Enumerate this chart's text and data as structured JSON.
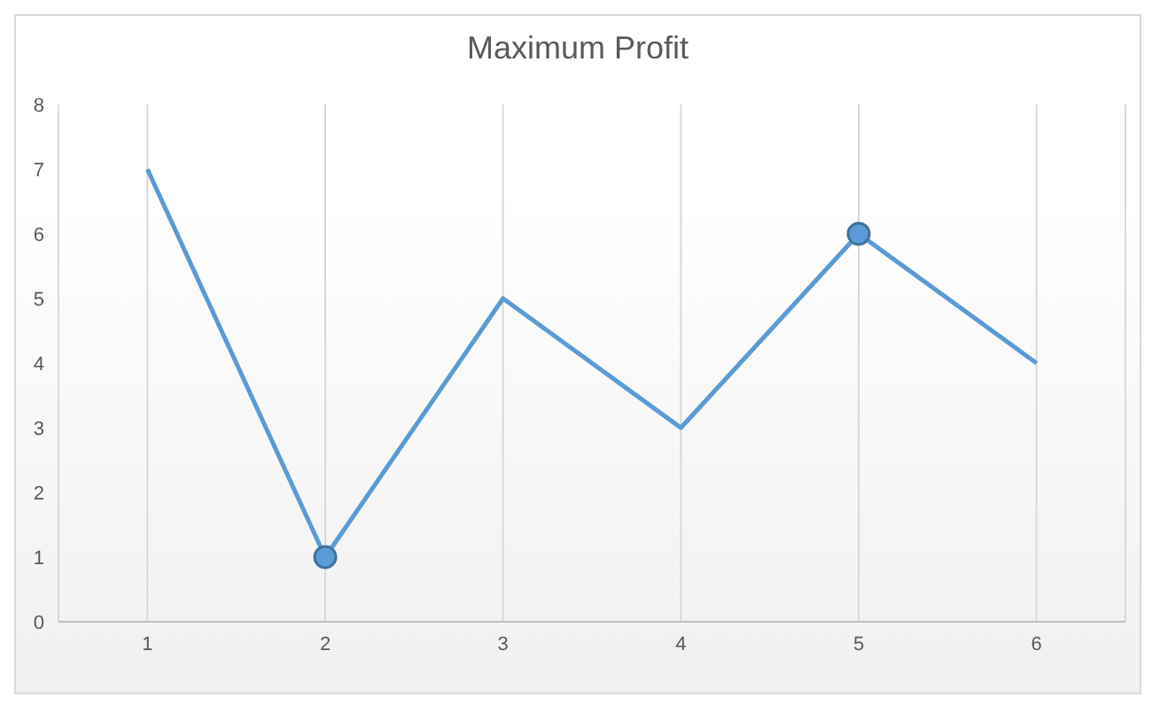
{
  "chart_data": {
    "type": "line",
    "title": "Maximum Profit",
    "x": [
      1,
      2,
      3,
      4,
      5,
      6
    ],
    "xlim": [
      0.5,
      6.5
    ],
    "xticks": [
      1,
      2,
      3,
      4,
      5,
      6
    ],
    "ylim": [
      0,
      8
    ],
    "yticks": [
      0,
      1,
      2,
      3,
      4,
      5,
      6,
      7,
      8
    ],
    "grid": "x",
    "marker": "none",
    "line_style": "solid",
    "series": [
      {
        "color": "#5b9bd5",
        "values": [
          7,
          1,
          5,
          3,
          6,
          4
        ]
      },
      {
        "type": "scatter",
        "color": "#5b9bd5",
        "x": [
          2,
          5
        ],
        "values": [
          1,
          6
        ],
        "marker": "circle"
      }
    ]
  }
}
